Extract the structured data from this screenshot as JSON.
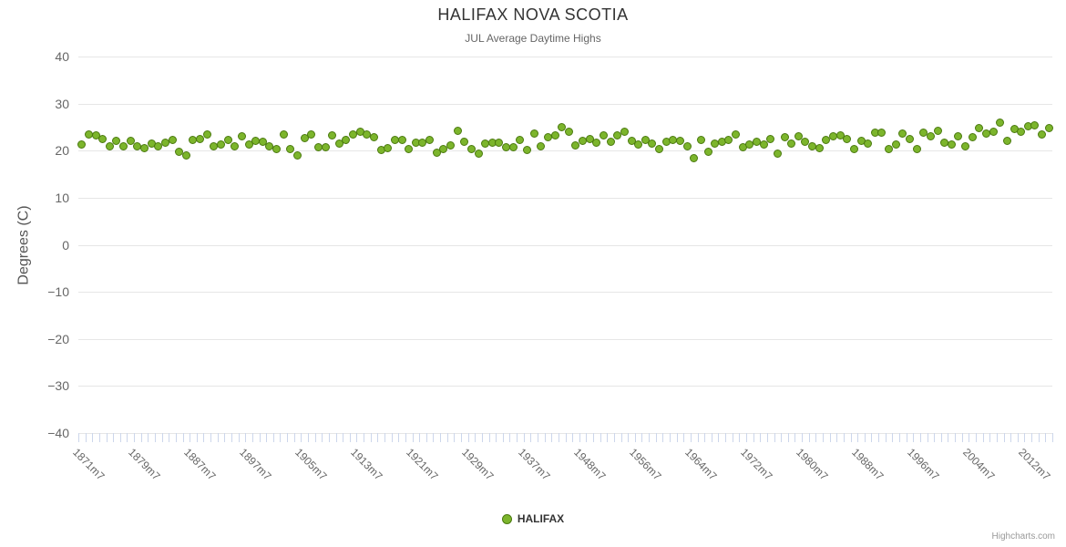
{
  "header": {
    "title": "HALIFAX NOVA SCOTIA",
    "subtitle": "JUL Average Daytime Highs"
  },
  "chart_data": {
    "type": "scatter",
    "title": "HALIFAX NOVA SCOTIA",
    "subtitle": "JUL Average Daytime Highs",
    "xlabel": "",
    "ylabel": "Degrees (C)",
    "ylim": [
      -40,
      40
    ],
    "y_tick_interval": 10,
    "y_tick_labels": [
      "40",
      "30",
      "20",
      "10",
      "0",
      "−10",
      "−20",
      "−30",
      "−40"
    ],
    "x_label_step": 8,
    "x_tick_labels": [
      "1871m7",
      "1879m7",
      "1887m7",
      "1897m7",
      "1905m7",
      "1913m7",
      "1921m7",
      "1929m7",
      "1937m7",
      "1948m7",
      "1956m7",
      "1964m7",
      "1972m7",
      "1980m7",
      "1988m7",
      "1996m7",
      "2004m7",
      "2012m7"
    ],
    "grid": true,
    "legend_position": "bottom-center",
    "marker": {
      "shape": "circle",
      "radius": 4
    },
    "categories": [
      "1871m7",
      "1872m7",
      "1873m7",
      "1874m7",
      "1875m7",
      "1876m7",
      "1877m7",
      "1878m7",
      "1879m7",
      "1880m7",
      "1881m7",
      "1882m7",
      "1883m7",
      "1884m7",
      "1885m7",
      "1886m7",
      "1887m7",
      "1888m7",
      "1890m7",
      "1891m7",
      "1892m7",
      "1894m7",
      "1895m7",
      "1896m7",
      "1897m7",
      "1898m7",
      "1899m7",
      "1900m7",
      "1901m7",
      "1902m7",
      "1903m7",
      "1904m7",
      "1905m7",
      "1906m7",
      "1907m7",
      "1908m7",
      "1909m7",
      "1910m7",
      "1911m7",
      "1912m7",
      "1913m7",
      "1914m7",
      "1915m7",
      "1916m7",
      "1917m7",
      "1918m7",
      "1919m7",
      "1920m7",
      "1921m7",
      "1922m7",
      "1923m7",
      "1924m7",
      "1925m7",
      "1926m7",
      "1927m7",
      "1928m7",
      "1929m7",
      "1930m7",
      "1931m7",
      "1932m7",
      "1933m7",
      "1934m7",
      "1935m7",
      "1936m7",
      "1937m7",
      "1938m7",
      "1939m7",
      "1943m7",
      "1944m7",
      "1945m7",
      "1946m7",
      "1947m7",
      "1948m7",
      "1949m7",
      "1950m7",
      "1951m7",
      "1952m7",
      "1953m7",
      "1954m7",
      "1955m7",
      "1956m7",
      "1957m7",
      "1958m7",
      "1959m7",
      "1960m7",
      "1961m7",
      "1962m7",
      "1963m7",
      "1964m7",
      "1965m7",
      "1966m7",
      "1967m7",
      "1968m7",
      "1969m7",
      "1970m7",
      "1971m7",
      "1972m7",
      "1973m7",
      "1974m7",
      "1975m7",
      "1976m7",
      "1977m7",
      "1978m7",
      "1979m7",
      "1980m7",
      "1981m7",
      "1982m7",
      "1983m7",
      "1984m7",
      "1985m7",
      "1986m7",
      "1987m7",
      "1988m7",
      "1989m7",
      "1990m7",
      "1991m7",
      "1992m7",
      "1993m7",
      "1994m7",
      "1995m7",
      "1996m7",
      "1997m7",
      "1998m7",
      "1999m7",
      "2000m7",
      "2001m7",
      "2002m7",
      "2003m7",
      "2004m7",
      "2005m7",
      "2006m7",
      "2007m7",
      "2008m7",
      "2009m7",
      "2010m7",
      "2011m7",
      "2012m7",
      "2013m7",
      "2014m7",
      "2015m7"
    ],
    "series": [
      {
        "name": "HALIFAX",
        "color": "#7cb52c",
        "border_color": "#4b7a0f",
        "values": [
          21.4,
          23.4,
          23.2,
          22.4,
          20.9,
          22.0,
          20.9,
          22.0,
          20.9,
          20.6,
          21.5,
          20.9,
          21.7,
          22.2,
          19.7,
          19.0,
          22.3,
          22.5,
          23.5,
          20.9,
          21.4,
          22.2,
          20.9,
          23.0,
          21.4,
          22.0,
          21.9,
          20.9,
          20.3,
          23.4,
          20.4,
          19.0,
          22.6,
          23.4,
          20.7,
          20.7,
          23.3,
          21.5,
          22.3,
          23.4,
          24.1,
          23.5,
          22.8,
          20.1,
          20.5,
          22.2,
          22.3,
          20.3,
          21.7,
          21.7,
          22.2,
          19.6,
          20.3,
          21.2,
          24.3,
          21.9,
          20.3,
          19.4,
          21.5,
          21.7,
          21.7,
          20.7,
          20.7,
          22.3,
          20.1,
          23.6,
          21.0,
          22.8,
          23.3,
          24.9,
          24.1,
          21.2,
          22.1,
          22.5,
          21.7,
          23.3,
          21.9,
          23.2,
          24.0,
          22.1,
          21.4,
          22.3,
          21.5,
          20.4,
          21.9,
          22.2,
          22.1,
          21.0,
          18.4,
          22.2,
          19.7,
          21.5,
          21.9,
          22.3,
          23.5,
          20.7,
          21.4,
          21.9,
          21.4,
          22.5,
          19.3,
          22.8,
          21.5,
          23.0,
          21.9,
          20.9,
          20.5,
          22.2,
          23.0,
          23.3,
          22.5,
          20.4,
          22.1,
          21.5,
          23.9,
          23.8,
          20.4,
          21.4,
          23.6,
          22.5,
          20.3,
          23.8,
          23.0,
          24.3,
          21.7,
          21.4,
          23.0,
          21.0,
          22.8,
          24.8,
          23.7,
          24.1,
          25.9,
          22.1,
          24.6,
          24.1,
          25.2,
          25.4,
          23.4,
          24.8
        ]
      }
    ]
  },
  "legend": {
    "items": [
      {
        "label": "HALIFAX",
        "marker_color": "#7cb52c"
      }
    ]
  },
  "credits": {
    "label": "Highcharts.com"
  },
  "colors": {
    "background": "#ffffff",
    "grid": "#e6e6e6",
    "axis": "#ccd6eb",
    "title": "#333333",
    "subtitle": "#666666",
    "axis_labels": "#666666",
    "legend_text": "#333333",
    "credits": "#999999"
  }
}
